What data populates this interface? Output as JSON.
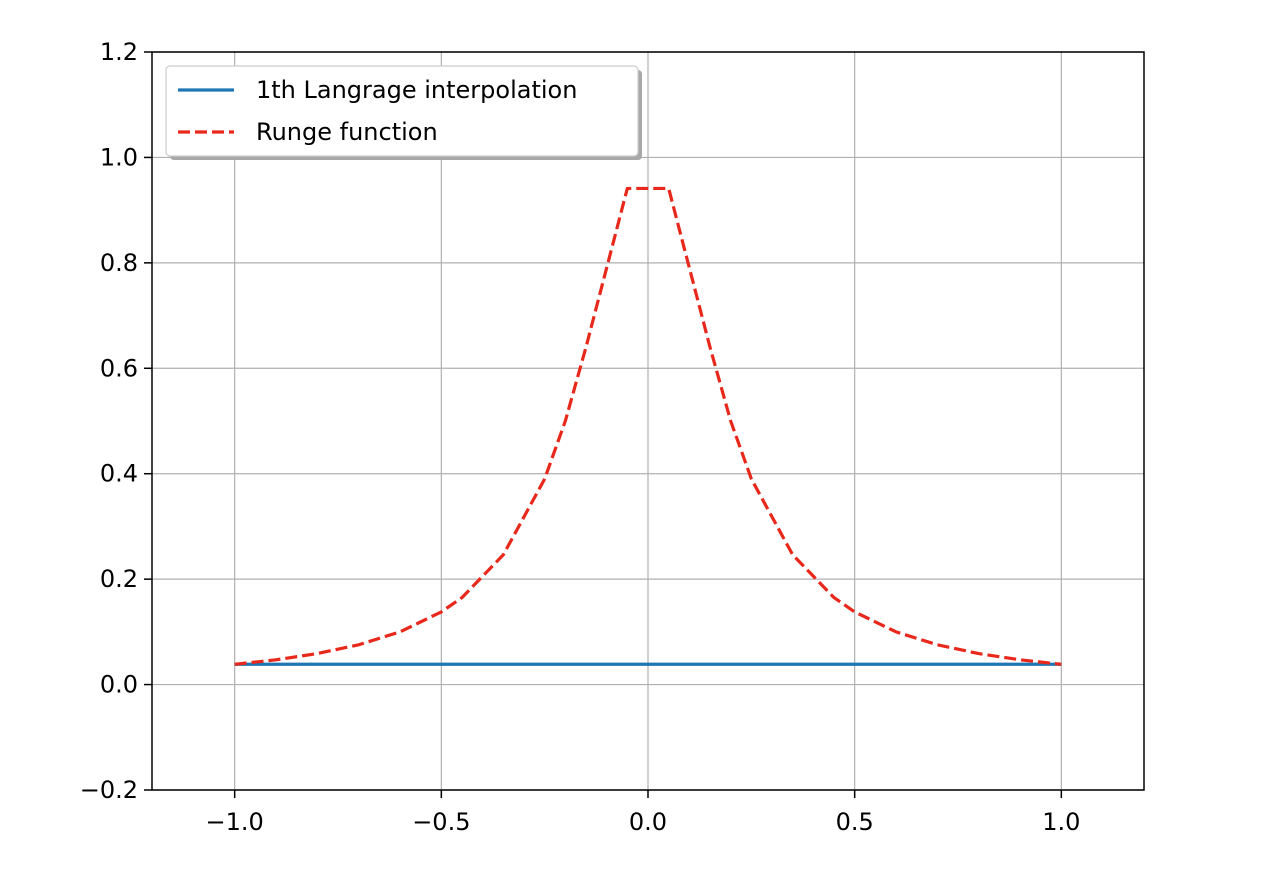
{
  "chart_data": {
    "type": "line",
    "xlim": [
      -1.2,
      1.2
    ],
    "ylim": [
      -0.2,
      1.2
    ],
    "xticks": [
      -1.0,
      -0.5,
      0.0,
      0.5,
      1.0
    ],
    "xtick_labels": [
      "−1.0",
      "−0.5",
      "0.0",
      "0.5",
      "1.0"
    ],
    "yticks": [
      -0.2,
      0.0,
      0.2,
      0.4,
      0.6,
      0.8,
      1.0,
      1.2
    ],
    "ytick_labels": [
      "−0.2",
      "0.0",
      "0.2",
      "0.4",
      "0.6",
      "0.8",
      "1.0",
      "1.2"
    ],
    "grid": true,
    "legend_position": "top-left",
    "series": [
      {
        "name": "1th Langrage interpolation",
        "color": "#1f77b4",
        "style": "solid",
        "x": [
          -1.0,
          1.0
        ],
        "y": [
          0.0385,
          0.0385
        ]
      },
      {
        "name": "Runge function",
        "color": "#e8281b",
        "style": "dashed",
        "x": [
          -1.0,
          -0.9,
          -0.8,
          -0.7,
          -0.6,
          -0.5,
          -0.45,
          -0.35,
          -0.25,
          -0.2,
          -0.15,
          -0.05,
          0.05,
          0.15,
          0.2,
          0.25,
          0.35,
          0.45,
          0.5,
          0.6,
          0.7,
          0.8,
          0.9,
          1.0
        ],
        "y": [
          0.0385,
          0.047,
          0.0588,
          0.0755,
          0.1,
          0.1379,
          0.165,
          0.2462,
          0.3902,
          0.5,
          0.64,
          0.9412,
          0.9412,
          0.64,
          0.5,
          0.3902,
          0.2462,
          0.165,
          0.1379,
          0.1,
          0.0755,
          0.0588,
          0.047,
          0.0385
        ]
      }
    ]
  }
}
